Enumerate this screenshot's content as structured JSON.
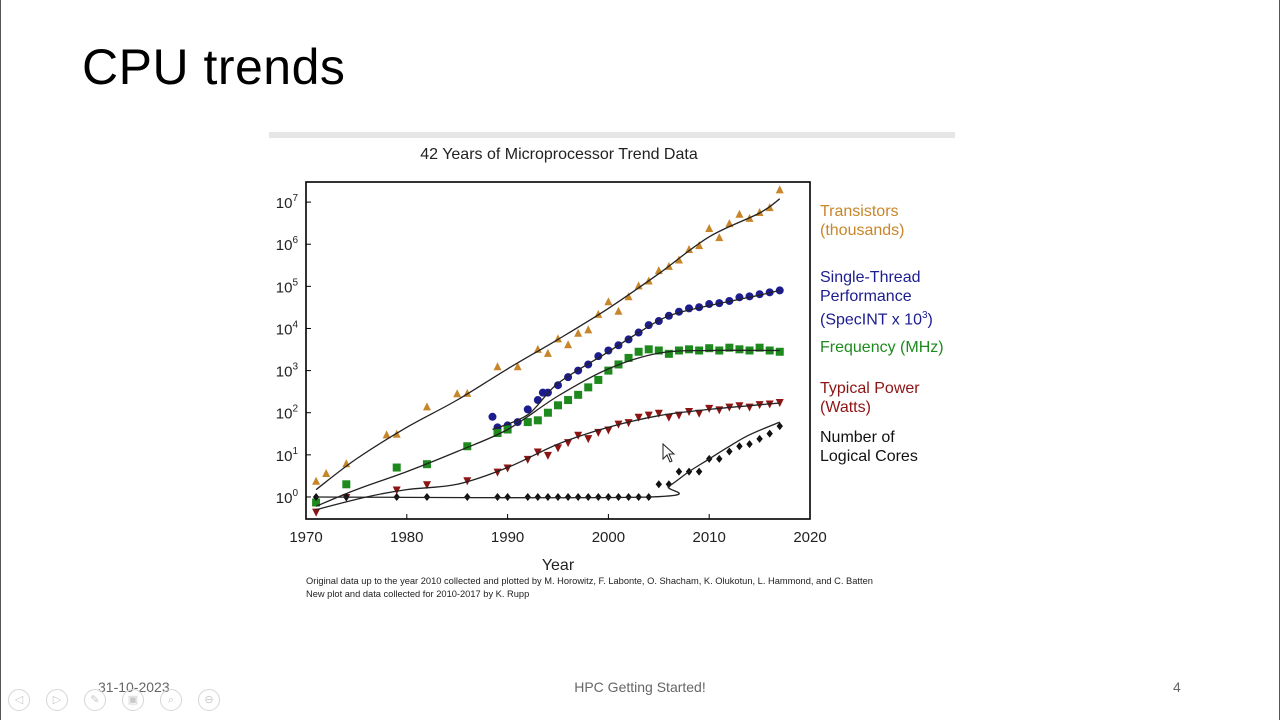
{
  "slide": {
    "title": "CPU trends",
    "footer_date": "31-10-2023",
    "footer_center": "HPC Getting Started!",
    "page_number": "4"
  },
  "toolbar": {
    "buttons": [
      {
        "name": "previous-slide",
        "icon": "arrow-left-icon",
        "glyph": "◁"
      },
      {
        "name": "next-slide",
        "icon": "arrow-right-icon",
        "glyph": "▷"
      },
      {
        "name": "pen",
        "icon": "pen-icon",
        "glyph": "✎"
      },
      {
        "name": "slides",
        "icon": "slides-icon",
        "glyph": "▣"
      },
      {
        "name": "zoom",
        "icon": "zoom-icon",
        "glyph": "⌕"
      },
      {
        "name": "more",
        "icon": "more-icon",
        "glyph": "⊖"
      }
    ]
  },
  "chart_data": {
    "type": "scatter",
    "title": "42 Years of Microprocessor Trend Data",
    "xlabel": "Year",
    "ylabel": "",
    "xlim": [
      1970,
      2020
    ],
    "ylim": [
      0.3,
      30000000
    ],
    "yscale": "log",
    "xticks": [
      1970,
      1980,
      1990,
      2000,
      2010,
      2020
    ],
    "yticks": [
      {
        "value": 1,
        "base": "10",
        "exp": "0"
      },
      {
        "value": 10,
        "base": "10",
        "exp": "1"
      },
      {
        "value": 100,
        "base": "10",
        "exp": "2"
      },
      {
        "value": 1000,
        "base": "10",
        "exp": "3"
      },
      {
        "value": 10000,
        "base": "10",
        "exp": "4"
      },
      {
        "value": 100000,
        "base": "10",
        "exp": "5"
      },
      {
        "value": 1000000,
        "base": "10",
        "exp": "6"
      },
      {
        "value": 10000000,
        "base": "10",
        "exp": "7"
      }
    ],
    "grid": false,
    "legend_position": "right",
    "credit_lines": [
      "Original data up to the year 2010 collected and plotted by M. Horowitz, F. Labonte, O. Shacham, K. Olukotun, L. Hammond, and C. Batten",
      "New plot and data collected for 2010-2017 by K. Rupp"
    ],
    "series": [
      {
        "key": "transistors",
        "label_lines": [
          "Transistors",
          "(thousands)"
        ],
        "color": "#c8862a",
        "marker": "triangle-up",
        "points": [
          [
            1971,
            2.3
          ],
          [
            1972,
            3.5
          ],
          [
            1974,
            6
          ],
          [
            1978,
            29
          ],
          [
            1979,
            30
          ],
          [
            1982,
            134
          ],
          [
            1985,
            275
          ],
          [
            1986,
            280
          ],
          [
            1989,
            1200
          ],
          [
            1991,
            1200
          ],
          [
            1993,
            3100
          ],
          [
            1994,
            2500
          ],
          [
            1995,
            5500
          ],
          [
            1996,
            4000
          ],
          [
            1997,
            7500
          ],
          [
            1998,
            9000
          ],
          [
            1999,
            21000
          ],
          [
            2000,
            42000
          ],
          [
            2001,
            25000
          ],
          [
            2002,
            55000
          ],
          [
            2003,
            100000
          ],
          [
            2004,
            130000
          ],
          [
            2005,
            230000
          ],
          [
            2006,
            290000
          ],
          [
            2007,
            410000
          ],
          [
            2008,
            730000
          ],
          [
            2009,
            900000
          ],
          [
            2010,
            2300000
          ],
          [
            2011,
            1400000
          ],
          [
            2012,
            3000000
          ],
          [
            2013,
            5000000
          ],
          [
            2014,
            4000000
          ],
          [
            2015,
            5500000
          ],
          [
            2016,
            7200000
          ],
          [
            2017,
            19000000
          ]
        ],
        "trend": [
          [
            1971,
            1.5
          ],
          [
            1975,
            8
          ],
          [
            1980,
            45
          ],
          [
            1985,
            200
          ],
          [
            1990,
            1100
          ],
          [
            1995,
            5500
          ],
          [
            2000,
            30000
          ],
          [
            2005,
            200000
          ],
          [
            2010,
            1500000
          ],
          [
            2015,
            5500000
          ],
          [
            2017,
            12000000
          ]
        ]
      },
      {
        "key": "single_thread",
        "label_lines": [
          "Single-Thread",
          "Performance",
          "(SpecINT x 10"
        ],
        "label_sup": "3",
        "label_after_sup": ")",
        "color": "#1c1c8e",
        "marker": "circle",
        "points": [
          [
            1988.5,
            80
          ],
          [
            1989,
            45
          ],
          [
            1990,
            50
          ],
          [
            1991,
            60
          ],
          [
            1992,
            120
          ],
          [
            1993,
            200
          ],
          [
            1993.5,
            300
          ],
          [
            1994,
            300
          ],
          [
            1995,
            450
          ],
          [
            1996,
            700
          ],
          [
            1997,
            1000
          ],
          [
            1998,
            1400
          ],
          [
            1999,
            2200
          ],
          [
            2000,
            3000
          ],
          [
            2001,
            4000
          ],
          [
            2002,
            5500
          ],
          [
            2003,
            8000
          ],
          [
            2004,
            12000
          ],
          [
            2005,
            15000
          ],
          [
            2006,
            20000
          ],
          [
            2007,
            25000
          ],
          [
            2008,
            30000
          ],
          [
            2009,
            32000
          ],
          [
            2010,
            38000
          ],
          [
            2011,
            40000
          ],
          [
            2012,
            45000
          ],
          [
            2013,
            55000
          ],
          [
            2014,
            58000
          ],
          [
            2015,
            65000
          ],
          [
            2016,
            72000
          ],
          [
            2017,
            80000
          ]
        ],
        "trend": [
          [
            1988.5,
            40
          ],
          [
            1992,
            90
          ],
          [
            1995,
            500
          ],
          [
            2000,
            2800
          ],
          [
            2003,
            8000
          ],
          [
            2006,
            20000
          ],
          [
            2010,
            35000
          ],
          [
            2014,
            55000
          ],
          [
            2017,
            80000
          ]
        ]
      },
      {
        "key": "frequency",
        "label_lines": [
          "Frequency (MHz)"
        ],
        "color": "#1e8a1e",
        "marker": "square",
        "points": [
          [
            1971,
            0.74
          ],
          [
            1974,
            2
          ],
          [
            1979,
            5
          ],
          [
            1982,
            6
          ],
          [
            1986,
            16
          ],
          [
            1989,
            33
          ],
          [
            1990,
            40
          ],
          [
            1992,
            60
          ],
          [
            1993,
            66
          ],
          [
            1994,
            100
          ],
          [
            1995,
            150
          ],
          [
            1996,
            200
          ],
          [
            1997,
            266
          ],
          [
            1998,
            400
          ],
          [
            1999,
            600
          ],
          [
            2000,
            1000
          ],
          [
            2001,
            1400
          ],
          [
            2002,
            2000
          ],
          [
            2003,
            2800
          ],
          [
            2004,
            3200
          ],
          [
            2005,
            3000
          ],
          [
            2006,
            2500
          ],
          [
            2007,
            3000
          ],
          [
            2008,
            3200
          ],
          [
            2009,
            3000
          ],
          [
            2010,
            3400
          ],
          [
            2011,
            3000
          ],
          [
            2012,
            3500
          ],
          [
            2013,
            3200
          ],
          [
            2014,
            3000
          ],
          [
            2015,
            3500
          ],
          [
            2016,
            3000
          ],
          [
            2017,
            2800
          ]
        ],
        "trend": [
          [
            1971,
            0.6
          ],
          [
            1975,
            1.5
          ],
          [
            1980,
            4
          ],
          [
            1985,
            12
          ],
          [
            1990,
            40
          ],
          [
            1995,
            250
          ],
          [
            2000,
            1100
          ],
          [
            2005,
            2600
          ],
          [
            2010,
            3000
          ],
          [
            2017,
            3000
          ]
        ]
      },
      {
        "key": "power",
        "label_lines": [
          "Typical Power",
          "(Watts)"
        ],
        "color": "#8e1414",
        "marker": "triangle-down",
        "points": [
          [
            1971,
            0.45
          ],
          [
            1974,
            1
          ],
          [
            1979,
            1.5
          ],
          [
            1982,
            2
          ],
          [
            1986,
            2.5
          ],
          [
            1989,
            4
          ],
          [
            1990,
            5
          ],
          [
            1992,
            8
          ],
          [
            1993,
            12
          ],
          [
            1994,
            10
          ],
          [
            1995,
            15
          ],
          [
            1996,
            20
          ],
          [
            1997,
            30
          ],
          [
            1998,
            25
          ],
          [
            1999,
            35
          ],
          [
            2000,
            40
          ],
          [
            2001,
            55
          ],
          [
            2002,
            60
          ],
          [
            2003,
            80
          ],
          [
            2004,
            90
          ],
          [
            2005,
            100
          ],
          [
            2006,
            80
          ],
          [
            2007,
            90
          ],
          [
            2008,
            110
          ],
          [
            2009,
            100
          ],
          [
            2010,
            130
          ],
          [
            2011,
            120
          ],
          [
            2012,
            140
          ],
          [
            2013,
            150
          ],
          [
            2014,
            140
          ],
          [
            2015,
            160
          ],
          [
            2016,
            165
          ],
          [
            2017,
            180
          ]
        ],
        "trend": [
          [
            1971,
            0.5
          ],
          [
            1976,
            1
          ],
          [
            1980,
            1.5
          ],
          [
            1985,
            2
          ],
          [
            1990,
            5
          ],
          [
            1995,
            18
          ],
          [
            2000,
            45
          ],
          [
            2005,
            85
          ],
          [
            2010,
            120
          ],
          [
            2017,
            170
          ]
        ]
      },
      {
        "key": "cores",
        "label_lines": [
          "Number of",
          "Logical Cores"
        ],
        "color": "#111111",
        "marker": "diamond",
        "points": [
          [
            1971,
            1
          ],
          [
            1974,
            1
          ],
          [
            1979,
            1
          ],
          [
            1982,
            1
          ],
          [
            1986,
            1
          ],
          [
            1989,
            1
          ],
          [
            1990,
            1
          ],
          [
            1992,
            1
          ],
          [
            1993,
            1
          ],
          [
            1994,
            1
          ],
          [
            1995,
            1
          ],
          [
            1996,
            1
          ],
          [
            1997,
            1
          ],
          [
            1998,
            1
          ],
          [
            1999,
            1
          ],
          [
            2000,
            1
          ],
          [
            2001,
            1
          ],
          [
            2002,
            1
          ],
          [
            2003,
            1
          ],
          [
            2004,
            1
          ],
          [
            2005,
            2
          ],
          [
            2006,
            2
          ],
          [
            2007,
            4
          ],
          [
            2008,
            4
          ],
          [
            2009,
            4
          ],
          [
            2010,
            8
          ],
          [
            2011,
            8
          ],
          [
            2012,
            12
          ],
          [
            2013,
            16
          ],
          [
            2014,
            18
          ],
          [
            2015,
            24
          ],
          [
            2016,
            32
          ],
          [
            2017,
            48
          ]
        ],
        "trend": [
          [
            1971,
            1
          ],
          [
            2004,
            1
          ],
          [
            2006,
            1.8
          ],
          [
            2008,
            4
          ],
          [
            2010,
            8
          ],
          [
            2012,
            16
          ],
          [
            2014,
            30
          ],
          [
            2017,
            60
          ]
        ]
      }
    ]
  }
}
